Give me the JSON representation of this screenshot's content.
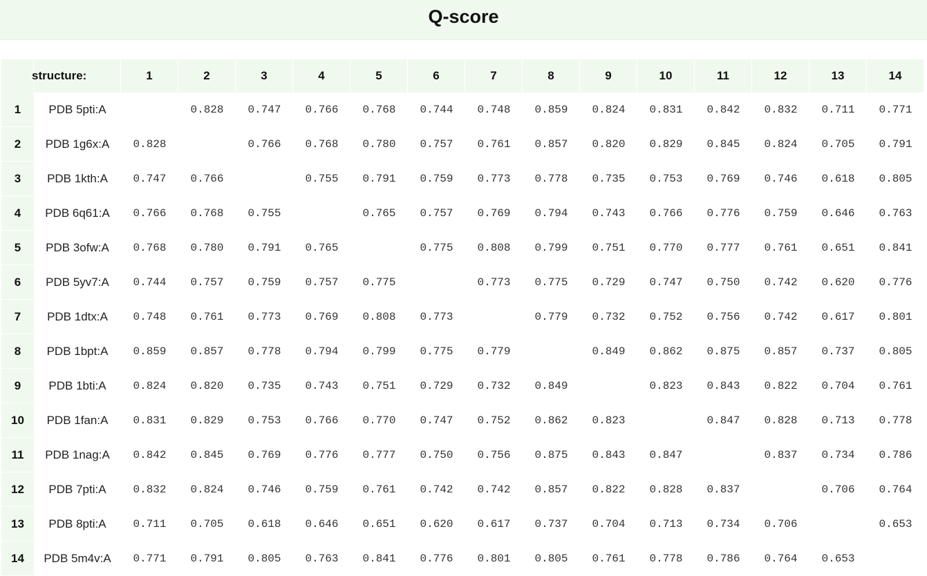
{
  "title": "Q-score",
  "header": {
    "structure_label": "structure:",
    "columns": [
      "1",
      "2",
      "3",
      "4",
      "5",
      "6",
      "7",
      "8",
      "9",
      "10",
      "11",
      "12",
      "13",
      "14"
    ]
  },
  "rows": [
    {
      "index": "1",
      "structure": "PDB 5pti:A",
      "values": [
        "",
        "0.828",
        "0.747",
        "0.766",
        "0.768",
        "0.744",
        "0.748",
        "0.859",
        "0.824",
        "0.831",
        "0.842",
        "0.832",
        "0.711",
        "0.771"
      ]
    },
    {
      "index": "2",
      "structure": "PDB 1g6x:A",
      "values": [
        "0.828",
        "",
        "0.766",
        "0.768",
        "0.780",
        "0.757",
        "0.761",
        "0.857",
        "0.820",
        "0.829",
        "0.845",
        "0.824",
        "0.705",
        "0.791"
      ]
    },
    {
      "index": "3",
      "structure": "PDB 1kth:A",
      "values": [
        "0.747",
        "0.766",
        "",
        "0.755",
        "0.791",
        "0.759",
        "0.773",
        "0.778",
        "0.735",
        "0.753",
        "0.769",
        "0.746",
        "0.618",
        "0.805"
      ]
    },
    {
      "index": "4",
      "structure": "PDB 6q61:A",
      "values": [
        "0.766",
        "0.768",
        "0.755",
        "",
        "0.765",
        "0.757",
        "0.769",
        "0.794",
        "0.743",
        "0.766",
        "0.776",
        "0.759",
        "0.646",
        "0.763"
      ]
    },
    {
      "index": "5",
      "structure": "PDB 3ofw:A",
      "values": [
        "0.768",
        "0.780",
        "0.791",
        "0.765",
        "",
        "0.775",
        "0.808",
        "0.799",
        "0.751",
        "0.770",
        "0.777",
        "0.761",
        "0.651",
        "0.841"
      ]
    },
    {
      "index": "6",
      "structure": "PDB 5yv7:A",
      "values": [
        "0.744",
        "0.757",
        "0.759",
        "0.757",
        "0.775",
        "",
        "0.773",
        "0.775",
        "0.729",
        "0.747",
        "0.750",
        "0.742",
        "0.620",
        "0.776"
      ]
    },
    {
      "index": "7",
      "structure": "PDB 1dtx:A",
      "values": [
        "0.748",
        "0.761",
        "0.773",
        "0.769",
        "0.808",
        "0.773",
        "",
        "0.779",
        "0.732",
        "0.752",
        "0.756",
        "0.742",
        "0.617",
        "0.801"
      ]
    },
    {
      "index": "8",
      "structure": "PDB 1bpt:A",
      "values": [
        "0.859",
        "0.857",
        "0.778",
        "0.794",
        "0.799",
        "0.775",
        "0.779",
        "",
        "0.849",
        "0.862",
        "0.875",
        "0.857",
        "0.737",
        "0.805"
      ]
    },
    {
      "index": "9",
      "structure": "PDB 1bti:A",
      "values": [
        "0.824",
        "0.820",
        "0.735",
        "0.743",
        "0.751",
        "0.729",
        "0.732",
        "0.849",
        "",
        "0.823",
        "0.843",
        "0.822",
        "0.704",
        "0.761"
      ]
    },
    {
      "index": "10",
      "structure": "PDB 1fan:A",
      "values": [
        "0.831",
        "0.829",
        "0.753",
        "0.766",
        "0.770",
        "0.747",
        "0.752",
        "0.862",
        "0.823",
        "",
        "0.847",
        "0.828",
        "0.713",
        "0.778"
      ]
    },
    {
      "index": "11",
      "structure": "PDB 1nag:A",
      "values": [
        "0.842",
        "0.845",
        "0.769",
        "0.776",
        "0.777",
        "0.750",
        "0.756",
        "0.875",
        "0.843",
        "0.847",
        "",
        "0.837",
        "0.734",
        "0.786"
      ]
    },
    {
      "index": "12",
      "structure": "PDB 7pti:A",
      "values": [
        "0.832",
        "0.824",
        "0.746",
        "0.759",
        "0.761",
        "0.742",
        "0.742",
        "0.857",
        "0.822",
        "0.828",
        "0.837",
        "",
        "0.706",
        "0.764"
      ]
    },
    {
      "index": "13",
      "structure": "PDB 8pti:A",
      "values": [
        "0.711",
        "0.705",
        "0.618",
        "0.646",
        "0.651",
        "0.620",
        "0.617",
        "0.737",
        "0.704",
        "0.713",
        "0.734",
        "0.706",
        "",
        "0.653"
      ]
    },
    {
      "index": "14",
      "structure": "PDB 5m4v:A",
      "values": [
        "0.771",
        "0.791",
        "0.805",
        "0.763",
        "0.841",
        "0.776",
        "0.801",
        "0.805",
        "0.761",
        "0.778",
        "0.786",
        "0.764",
        "0.653",
        ""
      ]
    }
  ]
}
